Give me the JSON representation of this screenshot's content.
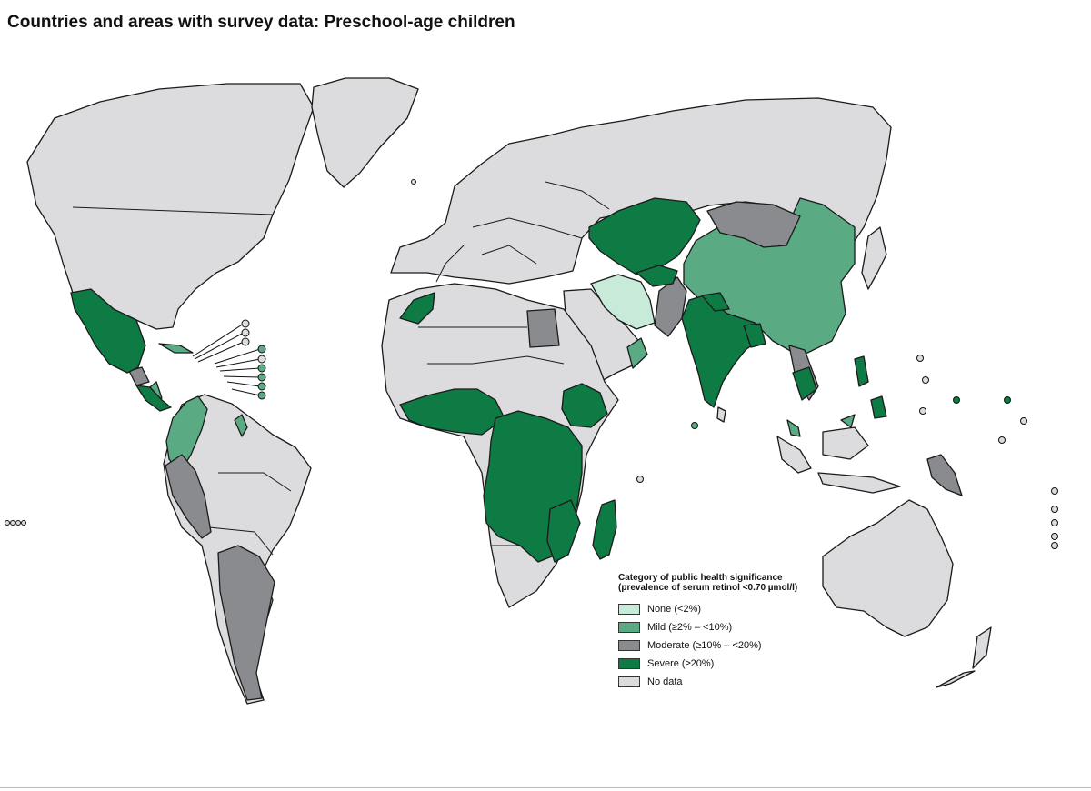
{
  "title": "Countries and areas with survey data: Preschool-age children",
  "legend": {
    "heading": "Category of public health significance (prevalence of serum retinol <0.70 µmol/l)",
    "items": [
      {
        "key": "none",
        "label": "None (<2%)",
        "color": "#c8ead8"
      },
      {
        "key": "mild",
        "label": "Mild (≥2% – <10%)",
        "color": "#5aab84"
      },
      {
        "key": "moderate",
        "label": "Moderate (≥10% – <20%)",
        "color": "#8a8b8e"
      },
      {
        "key": "severe",
        "label": "Severe (≥20%)",
        "color": "#0e7a44"
      },
      {
        "key": "nodata",
        "label": "No data",
        "color": "#dcdcde"
      }
    ]
  },
  "map_data": {
    "regions": [
      {
        "name": "Mexico",
        "category": "severe"
      },
      {
        "name": "Guatemala",
        "category": "moderate"
      },
      {
        "name": "Central America",
        "category": "severe"
      },
      {
        "name": "Cuba",
        "category": "mild"
      },
      {
        "name": "Colombia",
        "category": "mild"
      },
      {
        "name": "Guyana",
        "category": "mild"
      },
      {
        "name": "Peru",
        "category": "moderate"
      },
      {
        "name": "Argentina",
        "category": "moderate"
      },
      {
        "name": "Morocco",
        "category": "severe"
      },
      {
        "name": "Egypt",
        "category": "moderate"
      },
      {
        "name": "West Africa",
        "category": "severe"
      },
      {
        "name": "Central Africa",
        "category": "severe"
      },
      {
        "name": "East Africa",
        "category": "severe"
      },
      {
        "name": "Ethiopia",
        "category": "severe"
      },
      {
        "name": "Madagascar",
        "category": "severe"
      },
      {
        "name": "Kazakhstan",
        "category": "severe"
      },
      {
        "name": "Mongolia",
        "category": "moderate"
      },
      {
        "name": "China",
        "category": "mild"
      },
      {
        "name": "Iran",
        "category": "none"
      },
      {
        "name": "Oman",
        "category": "mild"
      },
      {
        "name": "Pakistan",
        "category": "moderate"
      },
      {
        "name": "India",
        "category": "severe"
      },
      {
        "name": "Bangladesh",
        "category": "severe"
      },
      {
        "name": "Cambodia",
        "category": "severe"
      },
      {
        "name": "Malaysia",
        "category": "mild"
      },
      {
        "name": "Philippines",
        "category": "severe"
      },
      {
        "name": "Papua New Guinea",
        "category": "moderate"
      }
    ]
  }
}
